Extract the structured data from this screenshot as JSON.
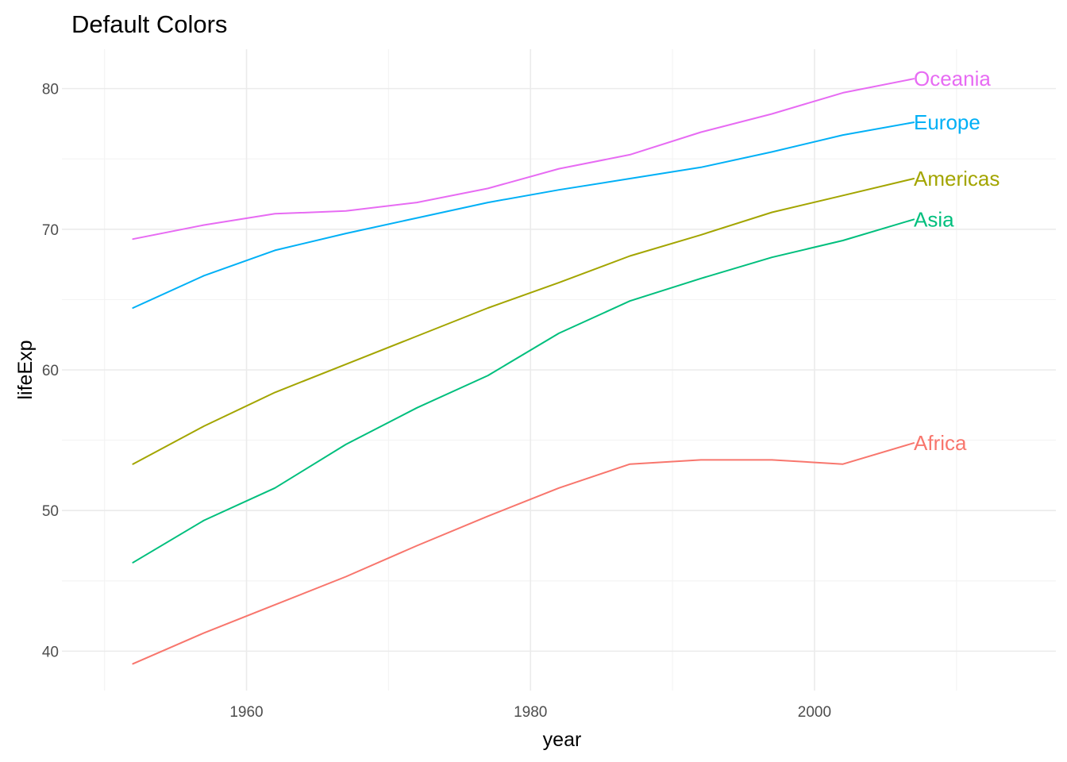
{
  "chart_data": {
    "type": "line",
    "title": "Default Colors",
    "xlabel": "year",
    "ylabel": "lifeExp",
    "xlim": [
      1947,
      2017
    ],
    "ylim": [
      37.2,
      82.8
    ],
    "x_ticks": [
      1960,
      1980,
      2000
    ],
    "x_minor": [
      1950,
      1970,
      1990,
      2010
    ],
    "y_ticks": [
      40,
      50,
      60,
      70,
      80
    ],
    "y_minor": [
      45,
      55,
      65,
      75
    ],
    "grid": true,
    "legend": "direct labels at line ends",
    "x": [
      1952,
      1957,
      1962,
      1967,
      1972,
      1977,
      1982,
      1987,
      1992,
      1997,
      2002,
      2007
    ],
    "series": [
      {
        "name": "Africa",
        "color": "#F8766D",
        "values": [
          39.1,
          41.3,
          43.3,
          45.3,
          47.5,
          49.6,
          51.6,
          53.3,
          53.6,
          53.6,
          53.3,
          54.8
        ]
      },
      {
        "name": "Americas",
        "color": "#A3A500",
        "values": [
          53.3,
          56.0,
          58.4,
          60.4,
          62.4,
          64.4,
          66.2,
          68.1,
          69.6,
          71.2,
          72.4,
          73.6
        ]
      },
      {
        "name": "Asia",
        "color": "#00BF7D",
        "values": [
          46.3,
          49.3,
          51.6,
          54.7,
          57.3,
          59.6,
          62.6,
          64.9,
          66.5,
          68.0,
          69.2,
          70.7
        ]
      },
      {
        "name": "Europe",
        "color": "#00B0F6",
        "values": [
          64.4,
          66.7,
          68.5,
          69.7,
          70.8,
          71.9,
          72.8,
          73.6,
          74.4,
          75.5,
          76.7,
          77.6
        ]
      },
      {
        "name": "Oceania",
        "color": "#E76BF3",
        "values": [
          69.3,
          70.3,
          71.1,
          71.3,
          71.9,
          72.9,
          74.3,
          75.3,
          76.9,
          78.2,
          79.7,
          80.7
        ]
      }
    ]
  }
}
